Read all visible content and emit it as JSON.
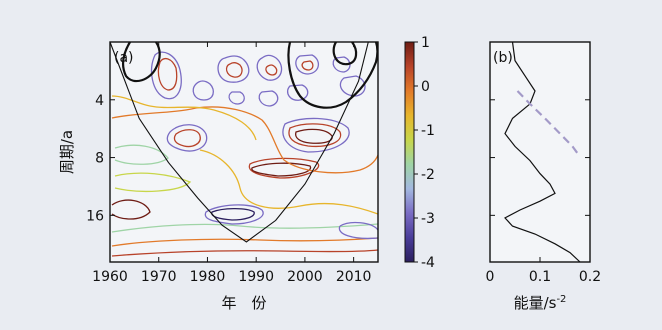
{
  "chart_data": [
    {
      "panel_label": "(a)",
      "type": "heatmap",
      "xlabel": "年　份",
      "ylabel": "周期/a",
      "xlim": [
        1960,
        2015
      ],
      "ylim": [
        2,
        28
      ],
      "y_log_scale": true,
      "x_ticks": [
        1960,
        1970,
        1980,
        1990,
        2000,
        2010
      ],
      "y_ticks": [
        4,
        8,
        16
      ],
      "colorbar": {
        "range": [
          -4,
          1
        ],
        "ticks": [
          1,
          0,
          -1,
          -2,
          -3,
          -4
        ],
        "colors": [
          "#2b1f5e",
          "#4a3d9a",
          "#7a6cc4",
          "#a3b8e0",
          "#9fd4a6",
          "#c8d64a",
          "#e7b52c",
          "#e27a2a",
          "#b8432a",
          "#6e1c14"
        ]
      },
      "cone_of_influence": [
        {
          "x": 1960,
          "y": 2
        },
        {
          "x": 1966,
          "y": 5
        },
        {
          "x": 1972,
          "y": 8.5
        },
        {
          "x": 1978,
          "y": 13
        },
        {
          "x": 1983,
          "y": 18
        },
        {
          "x": 1988,
          "y": 22
        },
        {
          "x": 1994,
          "y": 17
        },
        {
          "x": 2000,
          "y": 11
        },
        {
          "x": 2006,
          "y": 6
        },
        {
          "x": 2011,
          "y": 3.2
        },
        {
          "x": 2013,
          "y": 2
        }
      ]
    },
    {
      "panel_label": "(b)",
      "type": "line",
      "xlabel": "能量/s",
      "xlabel_superscript": "-2",
      "xlim": [
        0,
        0.2
      ],
      "ylim": [
        2,
        28
      ],
      "x_ticks": [
        0,
        0.1,
        0.2
      ],
      "series": [
        {
          "style": "solid",
          "points": [
            {
              "p": 2,
              "e": 0.045
            },
            {
              "p": 2.5,
              "e": 0.05
            },
            {
              "p": 3,
              "e": 0.07
            },
            {
              "p": 3.6,
              "e": 0.09
            },
            {
              "p": 4.2,
              "e": 0.08
            },
            {
              "p": 5,
              "e": 0.045
            },
            {
              "p": 6,
              "e": 0.03
            },
            {
              "p": 7,
              "e": 0.05
            },
            {
              "p": 8.3,
              "e": 0.08
            },
            {
              "p": 9.7,
              "e": 0.1
            },
            {
              "p": 11,
              "e": 0.12
            },
            {
              "p": 12.3,
              "e": 0.13
            },
            {
              "p": 13.5,
              "e": 0.1
            },
            {
              "p": 15,
              "e": 0.06
            },
            {
              "p": 16.5,
              "e": 0.03
            },
            {
              "p": 18.2,
              "e": 0.045
            },
            {
              "p": 20,
              "e": 0.09
            },
            {
              "p": 22.5,
              "e": 0.13
            },
            {
              "p": 25,
              "e": 0.16
            },
            {
              "p": 28,
              "e": 0.18
            }
          ]
        },
        {
          "style": "dashed",
          "points": [
            {
              "p": 3.6,
              "e": 0.055
            },
            {
              "p": 4.2,
              "e": 0.08
            },
            {
              "p": 5,
              "e": 0.11
            },
            {
              "p": 6,
              "e": 0.14
            },
            {
              "p": 7,
              "e": 0.165
            },
            {
              "p": 7.6,
              "e": 0.175
            }
          ]
        }
      ]
    }
  ]
}
